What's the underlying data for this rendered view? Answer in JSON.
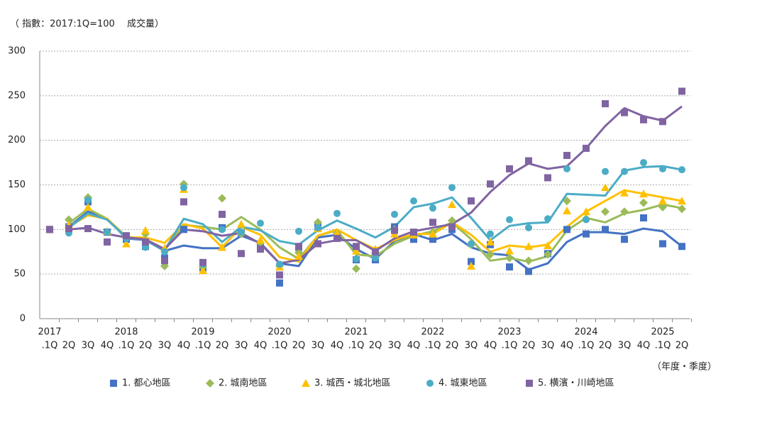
{
  "chart_data": {
    "type": "line",
    "title": "（ 指數：2017:1Q=100　 成交量）",
    "x_unit": "（年度・季度）",
    "years": [
      "2017",
      null,
      null,
      null,
      "2018",
      null,
      null,
      null,
      "2019",
      null,
      null,
      null,
      "2020",
      null,
      null,
      null,
      "2021",
      null,
      null,
      null,
      "2022",
      null,
      null,
      null,
      "2023",
      null,
      null,
      null,
      "2024",
      null,
      null,
      null,
      "2025",
      null
    ],
    "categories": [
      ".1Q",
      "2Q",
      "3Q",
      "4Q",
      ".1Q",
      "2Q",
      "3Q",
      "4Q",
      ".1Q",
      "2Q",
      "3Q",
      "4Q",
      ".1Q",
      "2Q",
      "3Q",
      "4Q",
      ".1Q",
      "2Q",
      "3Q",
      "4Q",
      ".1Q",
      "2Q",
      "3Q",
      "4Q",
      ".1Q",
      "2Q",
      "3Q",
      "4Q",
      ".1Q",
      "2Q",
      "3Q",
      "4Q",
      ".1Q",
      "2Q"
    ],
    "ylim": [
      0,
      300
    ],
    "yticks": [
      0,
      50,
      100,
      150,
      200,
      250,
      300
    ],
    "grid": true,
    "series": [
      {
        "name": "1. 都心地區",
        "color": "#4472c4",
        "marker": "square",
        "values": [
          100,
          103,
          131,
          97,
          89,
          81,
          68,
          100,
          57,
          102,
          96,
          80,
          40,
          80,
          103,
          92,
          66,
          66,
          103,
          89,
          89,
          100,
          64,
          83,
          58,
          53,
          73,
          100,
          95,
          100,
          89,
          113,
          84,
          81
        ],
        "trend": [
          null,
          103,
          120,
          112,
          90,
          88,
          76,
          82,
          79,
          79,
          93,
          85,
          62,
          59,
          91,
          94,
          78,
          67,
          87,
          95,
          88,
          95,
          80,
          73,
          71,
          55,
          62,
          86,
          97,
          97,
          95,
          101,
          98,
          81
        ]
      },
      {
        "name": "2. 城南地區",
        "color": "#9bbb59",
        "marker": "diamond",
        "values": [
          100,
          111,
          136,
          97,
          92,
          95,
          59,
          151,
          58,
          135,
          95,
          85,
          59,
          74,
          108,
          96,
          56,
          69,
          100,
          94,
          97,
          110,
          83,
          72,
          68,
          65,
          72,
          132,
          112,
          120,
          120,
          130,
          125,
          123
        ],
        "trend": [
          null,
          107,
          123,
          112,
          92,
          89,
          77,
          105,
          103,
          100,
          114,
          100,
          80,
          67,
          93,
          99,
          72,
          70,
          84,
          93,
          98,
          108,
          89,
          65,
          68,
          64,
          70,
          99,
          113,
          108,
          118,
          122,
          128,
          124
        ]
      },
      {
        "name": "3. 城西・城北地區",
        "color": "#ffc000",
        "marker": "triangle",
        "values": [
          100,
          105,
          125,
          98,
          84,
          99,
          79,
          145,
          54,
          80,
          106,
          88,
          58,
          70,
          101,
          96,
          76,
          78,
          95,
          94,
          95,
          128,
          59,
          86,
          76,
          81,
          82,
          121,
          120,
          147,
          141,
          140,
          132,
          132
        ],
        "trend": [
          null,
          103,
          116,
          112,
          91,
          91,
          85,
          106,
          101,
          80,
          103,
          94,
          69,
          64,
          93,
          100,
          88,
          78,
          88,
          95,
          95,
          108,
          94,
          75,
          82,
          80,
          83,
          103,
          120,
          132,
          144,
          140,
          136,
          132
        ]
      },
      {
        "name": "4. 城東地區",
        "color": "#4bacc6",
        "marker": "circle",
        "values": [
          100,
          96,
          133,
          97,
          90,
          80,
          75,
          147,
          61,
          100,
          97,
          107,
          61,
          98,
          102,
          118,
          67,
          68,
          117,
          132,
          124,
          147,
          84,
          95,
          111,
          102,
          112,
          168,
          111,
          165,
          165,
          175,
          168,
          167
        ],
        "trend": [
          null,
          102,
          118,
          111,
          91,
          88,
          77,
          112,
          106,
          86,
          103,
          99,
          87,
          83,
          99,
          110,
          101,
          91,
          103,
          125,
          129,
          136,
          113,
          88,
          104,
          107,
          108,
          140,
          139,
          138,
          166,
          170,
          171,
          167
        ]
      },
      {
        "name": "5. 横濱・川崎地區",
        "color": "#8064a2",
        "marker": "square",
        "values": [
          100,
          101,
          101,
          86,
          93,
          86,
          65,
          131,
          63,
          117,
          73,
          78,
          49,
          81,
          84,
          90,
          81,
          75,
          99,
          97,
          108,
          103,
          132,
          151,
          168,
          177,
          158,
          183,
          191,
          241,
          231,
          223,
          221,
          255
        ],
        "trend": [
          null,
          100,
          102,
          95,
          91,
          89,
          78,
          100,
          98,
          93,
          96,
          84,
          62,
          66,
          84,
          88,
          88,
          76,
          90,
          98,
          102,
          106,
          119,
          142,
          161,
          174,
          168,
          171,
          191,
          216,
          236,
          227,
          222,
          238
        ]
      }
    ]
  }
}
